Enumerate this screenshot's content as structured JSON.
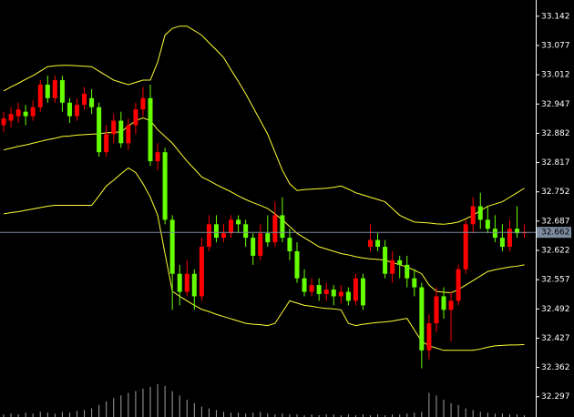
{
  "chart_data": {
    "type": "candlestick",
    "ylim": [
      32.252,
      33.178
    ],
    "yticks": [
      33.142,
      33.077,
      33.012,
      32.947,
      32.882,
      32.817,
      32.752,
      32.687,
      32.622,
      32.557,
      32.492,
      32.427,
      32.362,
      32.297
    ],
    "current_price": 32.662,
    "up_color": "#ff0000",
    "down_color": "#66ff00",
    "band_color": "#ffff33",
    "volume_color": "#a0a0a0",
    "price_line_color": "#7d8ba0",
    "candles": {
      "open": [
        32.9,
        32.91,
        32.92,
        32.93,
        32.92,
        32.94,
        32.99,
        32.96,
        33.0,
        32.95,
        32.92,
        32.945,
        32.96,
        32.94,
        32.84,
        32.88,
        32.91,
        32.86,
        32.9,
        32.935,
        32.96,
        32.82,
        32.84,
        32.69,
        32.57,
        32.53,
        32.57,
        32.52,
        32.63,
        32.68,
        32.65,
        32.66,
        32.69,
        32.68,
        32.65,
        32.61,
        32.66,
        32.64,
        32.7,
        32.65,
        32.62,
        32.56,
        32.53,
        32.545,
        32.525,
        32.535,
        32.52,
        32.53,
        32.51,
        32.56,
        32.63,
        32.645,
        32.63,
        32.57,
        32.6,
        32.59,
        32.56,
        32.54,
        32.4,
        32.46,
        32.52,
        32.49,
        32.51,
        32.58,
        32.68,
        32.72,
        32.69,
        32.67,
        32.65,
        32.63,
        32.67,
        32.66
      ],
      "high": [
        32.93,
        32.94,
        32.95,
        32.945,
        32.955,
        33.0,
        33.01,
        33.01,
        33.01,
        32.96,
        32.96,
        32.985,
        32.98,
        32.95,
        32.9,
        32.925,
        32.93,
        32.915,
        32.95,
        32.985,
        32.99,
        32.86,
        32.85,
        32.7,
        32.59,
        32.6,
        32.58,
        32.65,
        32.7,
        32.7,
        32.68,
        32.7,
        32.7,
        32.69,
        32.66,
        32.68,
        32.7,
        32.73,
        32.74,
        32.67,
        32.64,
        32.58,
        32.56,
        32.56,
        32.55,
        32.545,
        32.545,
        32.54,
        32.57,
        32.57,
        32.68,
        32.66,
        32.645,
        32.62,
        32.61,
        32.61,
        32.58,
        32.55,
        32.48,
        32.54,
        32.54,
        32.53,
        32.59,
        32.69,
        32.74,
        32.75,
        32.72,
        32.7,
        32.68,
        32.69,
        32.72,
        32.68
      ],
      "low": [
        32.885,
        32.895,
        32.905,
        32.9,
        32.91,
        32.93,
        32.95,
        32.95,
        32.93,
        32.905,
        32.91,
        32.935,
        32.925,
        32.83,
        32.83,
        32.86,
        32.85,
        32.845,
        32.88,
        32.92,
        32.81,
        32.8,
        32.68,
        32.49,
        32.5,
        32.52,
        32.49,
        32.51,
        32.62,
        32.64,
        32.64,
        32.65,
        32.66,
        32.63,
        32.59,
        32.6,
        32.63,
        32.63,
        32.64,
        32.6,
        32.55,
        32.52,
        32.52,
        32.51,
        32.51,
        32.5,
        32.505,
        32.5,
        32.5,
        32.49,
        32.62,
        32.62,
        32.56,
        32.55,
        32.56,
        32.54,
        32.52,
        32.36,
        32.38,
        32.44,
        32.47,
        32.42,
        32.5,
        32.57,
        32.66,
        32.67,
        32.66,
        32.64,
        32.62,
        32.62,
        32.65,
        32.65
      ],
      "close": [
        32.915,
        32.925,
        32.935,
        32.92,
        32.94,
        32.99,
        32.96,
        33.0,
        32.95,
        32.92,
        32.945,
        32.97,
        32.94,
        32.84,
        32.88,
        32.91,
        32.86,
        32.9,
        32.935,
        32.96,
        32.82,
        32.84,
        32.69,
        32.57,
        32.53,
        32.57,
        32.52,
        32.63,
        32.68,
        32.65,
        32.66,
        32.69,
        32.68,
        32.65,
        32.61,
        32.66,
        32.64,
        32.7,
        32.65,
        32.62,
        32.56,
        32.53,
        32.545,
        32.525,
        32.535,
        32.52,
        32.53,
        32.51,
        32.56,
        32.5,
        32.645,
        32.63,
        32.57,
        32.6,
        32.59,
        32.56,
        32.54,
        32.4,
        32.46,
        32.52,
        32.49,
        32.51,
        32.58,
        32.68,
        32.72,
        32.69,
        32.67,
        32.65,
        32.63,
        32.67,
        32.66,
        32.662
      ]
    },
    "bands": [
      {
        "values": [
          32.976,
          32.985,
          32.993,
          33.002,
          33.01,
          33.02,
          33.03,
          33.032,
          33.033,
          33.033,
          33.032,
          33.031,
          33.03,
          33.02,
          33.01,
          33.0,
          32.995,
          32.99,
          32.995,
          33.0,
          33.0,
          33.04,
          33.1,
          33.115,
          33.12,
          33.12,
          33.11,
          33.1,
          33.083,
          33.067,
          33.05,
          33.023,
          32.997,
          32.97,
          32.94,
          32.91,
          32.88,
          32.84,
          32.8,
          32.77,
          32.755,
          32.757,
          32.758,
          32.759,
          32.76,
          32.762,
          32.765,
          32.758,
          32.75,
          32.745,
          32.74,
          32.735,
          32.73,
          32.715,
          32.7,
          32.692,
          32.685,
          32.684,
          32.683,
          32.681,
          32.68,
          32.682,
          32.685,
          32.692,
          32.7,
          32.71,
          32.72,
          32.725,
          32.73,
          32.74,
          32.75,
          32.76
        ]
      },
      {
        "values": [
          32.845,
          32.849,
          32.853,
          32.856,
          32.86,
          32.864,
          32.868,
          32.871,
          32.875,
          32.876,
          32.878,
          32.879,
          32.88,
          32.881,
          32.883,
          32.884,
          32.885,
          32.898,
          32.91,
          32.916,
          32.91,
          32.89,
          32.875,
          32.86,
          32.84,
          32.82,
          32.803,
          32.785,
          32.777,
          32.768,
          32.76,
          32.752,
          32.743,
          32.735,
          32.728,
          32.722,
          32.715,
          32.703,
          32.69,
          32.675,
          32.66,
          32.65,
          32.64,
          32.63,
          32.625,
          32.62,
          32.615,
          32.612,
          32.608,
          32.605,
          32.603,
          32.602,
          32.6,
          32.595,
          32.59,
          32.585,
          32.578,
          32.57,
          32.545,
          32.531,
          32.529,
          32.528,
          32.535,
          32.545,
          32.555,
          32.565,
          32.575,
          32.579,
          32.582,
          32.585,
          32.587,
          32.59
        ]
      },
      {
        "values": [
          32.703,
          32.706,
          32.708,
          32.711,
          32.714,
          32.717,
          32.72,
          32.722,
          32.722,
          32.722,
          32.722,
          32.722,
          32.722,
          32.743,
          32.765,
          32.778,
          32.792,
          32.805,
          32.795,
          32.77,
          32.74,
          32.7,
          32.615,
          32.531,
          32.52,
          32.51,
          32.5,
          32.491,
          32.486,
          32.48,
          32.475,
          32.47,
          32.465,
          32.46,
          32.458,
          32.457,
          32.455,
          32.46,
          32.485,
          32.51,
          32.505,
          32.5,
          32.498,
          32.495,
          32.493,
          32.492,
          32.49,
          32.46,
          32.455,
          32.458,
          32.46,
          32.462,
          32.463,
          32.465,
          32.468,
          32.471,
          32.445,
          32.42,
          32.41,
          32.405,
          32.4,
          32.4,
          32.4,
          32.4,
          32.4,
          32.403,
          32.407,
          32.41,
          32.411,
          32.412,
          32.412,
          32.413
        ]
      }
    ],
    "volume": [
      3,
      4,
      3,
      5,
      4,
      6,
      5,
      4,
      6,
      5,
      7,
      8,
      10,
      14,
      18,
      22,
      25,
      28,
      30,
      33,
      35,
      38,
      36,
      30,
      25,
      20,
      16,
      12,
      10,
      8,
      6,
      5,
      5,
      4,
      5,
      6,
      4,
      3,
      4,
      3,
      3,
      2,
      3,
      2,
      3,
      3,
      2,
      3,
      2,
      3,
      2,
      3,
      2,
      3,
      3,
      4,
      5,
      6,
      28,
      25,
      20,
      16,
      14,
      10,
      8,
      6,
      5,
      4,
      4,
      3,
      3,
      2
    ]
  }
}
